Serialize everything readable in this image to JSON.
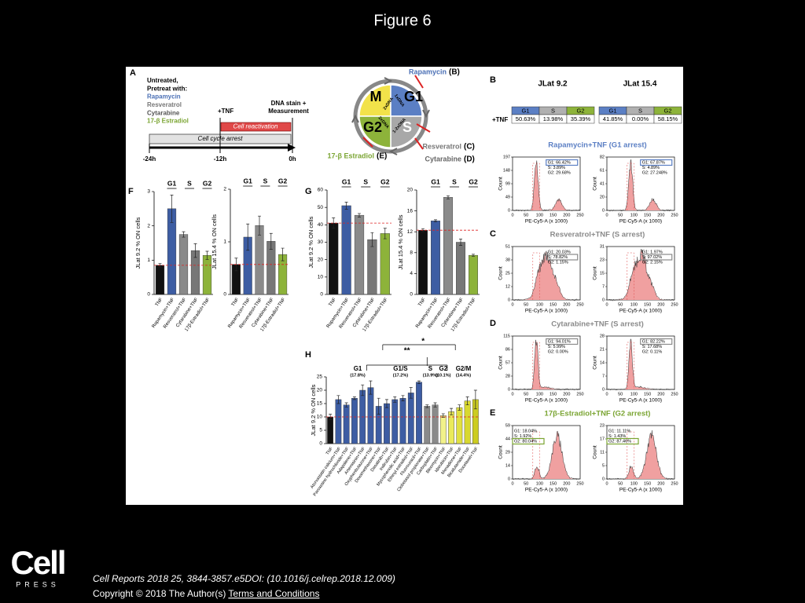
{
  "header": {
    "title": "Figure 6"
  },
  "panel_a": {
    "letter": "A",
    "pretreat": [
      "Untreated,",
      "Pretreat with:",
      "Rapamycin",
      "Resveratrol",
      "Cytarabine",
      "17-β Estradiol"
    ],
    "tnf": "+TNF",
    "measure": [
      "DNA stain +",
      "Measurement"
    ],
    "reactivation": "Cell reactivation",
    "arrest": "Cell cycle arrest",
    "times": [
      "-24h",
      "-12h",
      "0h"
    ],
    "cycle": {
      "phases": [
        "M",
        "G1",
        "S",
        "G2"
      ],
      "dna": [
        "2xDNA",
        "1xDNA",
        "1-2xDNA",
        "2xDNA"
      ],
      "drugs": [
        {
          "name": "Rapamycin",
          "ref": "(B)"
        },
        {
          "name": "Resveratrol",
          "ref": "(C)"
        },
        {
          "name": "Cytarabine",
          "ref": "(D)"
        },
        {
          "name": "17-β Estradiol",
          "ref": "(E)"
        }
      ]
    }
  },
  "panel_b": {
    "letter": "B",
    "lines": [
      "JLat 9.2",
      "JLat 15.4"
    ],
    "table": {
      "header": [
        "G1",
        "S",
        "G2"
      ],
      "row_label": "+TNF",
      "rows": [
        [
          "50.63%",
          "13.98%",
          "35.39%"
        ],
        [
          "41.85%",
          "0.00%",
          "58.15%"
        ]
      ]
    }
  },
  "flow": {
    "y_label": "Count",
    "x_label": "PE-Cy5-A (x 1000)",
    "xticks": [
      "0",
      "50",
      "100",
      "150",
      "200",
      "250"
    ],
    "sections": [
      {
        "title": "Rapamycin+TNF (G1 arrest)",
        "color": "#5b7fc4",
        "highlight": 0,
        "plots": [
          {
            "yticks": [
              "197",
              "148",
              "99",
              "49",
              "0"
            ],
            "gates": [
              "G1: 66.42%",
              "S: 3.89%",
              "G2: 29.68%"
            ]
          },
          {
            "yticks": [
              "82",
              "61",
              "41",
              "20",
              "0"
            ],
            "gates": [
              "G1: 67.87%",
              "S: 4.89%",
              "G2: 27.248%"
            ]
          }
        ]
      },
      {
        "letter": "C",
        "title": "Resveratrol+TNF (S arrest)",
        "color": "#8a8a8a",
        "highlight": 1,
        "plots": [
          {
            "yticks": [
              "51",
              "38",
              "25",
              "12",
              "0"
            ],
            "gates": [
              "G1: 20.03%",
              "S: 78.82%",
              "G2: 1.15%"
            ]
          },
          {
            "yticks": [
              "31",
              "23",
              "15",
              "7",
              "0"
            ],
            "gates": [
              "G1: 1.97%",
              "S: 97.02%",
              "G2: 2.15%"
            ]
          }
        ]
      },
      {
        "letter": "D",
        "title": "Cytarabine+TNF (S arrest)",
        "color": "#8a8a8a",
        "highlight": 0,
        "plots": [
          {
            "yticks": [
              "115",
              "86",
              "57",
              "28",
              "0"
            ],
            "gates": [
              "G1: 94.01%",
              "S: 5.99%",
              "G2: 0.00%"
            ]
          },
          {
            "yticks": [
              "28",
              "21",
              "14",
              "7",
              "0"
            ],
            "gates": [
              "G1: 82.22%",
              "S: 17.68%",
              "G2: 0.11%"
            ]
          }
        ]
      },
      {
        "letter": "E",
        "title": "17β-Estradiol+TNF (G2 arrest)",
        "color": "#7ba533",
        "highlight": 2,
        "plots": [
          {
            "yticks": [
              "59",
              "44",
              "29",
              "14",
              "0"
            ],
            "gates": [
              "G1: 18.04%",
              "S: 1.92%",
              "G2: 80.04%"
            ]
          },
          {
            "yticks": [
              "23",
              "17",
              "11",
              "5",
              "0"
            ],
            "gates": [
              "G1: 11.11%",
              "S: 1.43%",
              "G2: 87.46%"
            ]
          }
        ]
      }
    ]
  },
  "panel_letters": {
    "f": "F",
    "g": "G",
    "h": "H"
  },
  "chart_data": [
    {
      "type": "bar",
      "y_label": "JLat 9.2 % ON cells",
      "groups": [
        "G1",
        "S",
        "G2"
      ],
      "categories": [
        "TNF",
        "Rapamycin+TNF",
        "Resveratrol+TNF",
        "Cytarabine+TNF",
        "17β-Estradiol+TNF"
      ],
      "values": [
        0.85,
        2.5,
        1.75,
        1.28,
        1.14
      ],
      "errors": [
        0.05,
        0.4,
        0.08,
        0.2,
        0.12
      ],
      "colors": [
        "#111111",
        "#3d5da3",
        "#8a8a8a",
        "#777777",
        "#8db33a"
      ],
      "ylim": [
        0,
        3
      ],
      "yticks": [
        0,
        1,
        2,
        3
      ]
    },
    {
      "type": "bar",
      "y_label": "JLat 15.4 % ON cells",
      "groups": [
        "G1",
        "S",
        "G2"
      ],
      "categories": [
        "TNF",
        "Rapamycin+TNF",
        "Resveratrol+TNF",
        "Cytarabine+TNF",
        "17β-Estradiol+TNF"
      ],
      "values": [
        0.57,
        1.09,
        1.31,
        1.01,
        0.76
      ],
      "errors": [
        0.12,
        0.25,
        0.18,
        0.15,
        0.12
      ],
      "colors": [
        "#111111",
        "#3d5da3",
        "#8a8a8a",
        "#777777",
        "#8db33a"
      ],
      "ylim": [
        0,
        2
      ],
      "yticks": [
        0,
        1,
        2
      ]
    },
    {
      "type": "bar",
      "y_label": "JLat 9.2 % ON cells",
      "groups": [
        "G1",
        "S",
        "G2"
      ],
      "categories": [
        "TNF",
        "Rapamycin+TNF",
        "Resveratrol+TNF",
        "Cytarabine+TNF",
        "17β-Estradiol+TNF"
      ],
      "values": [
        41,
        51,
        45.5,
        31.5,
        35
      ],
      "errors": [
        3,
        2,
        1,
        4,
        3
      ],
      "colors": [
        "#111111",
        "#3d5da3",
        "#8a8a8a",
        "#777777",
        "#8db33a"
      ],
      "ylim": [
        0,
        60
      ],
      "yticks": [
        0,
        10,
        20,
        30,
        40,
        50,
        60
      ]
    },
    {
      "type": "bar",
      "y_label": "JLat 15.4 % ON cells",
      "groups": [
        "G1",
        "S",
        "G2"
      ],
      "categories": [
        "TNF",
        "Rapamycin+TNF",
        "Resveratrol+TNF",
        "Cytarabine+TNF",
        "17β-Estradiol+TNF"
      ],
      "values": [
        12.3,
        14.1,
        18.6,
        10,
        7.5
      ],
      "errors": [
        0.3,
        0.2,
        0.3,
        0.6,
        0.2
      ],
      "colors": [
        "#111111",
        "#3d5da3",
        "#8a8a8a",
        "#777777",
        "#8db33a"
      ],
      "ylim": [
        0,
        20
      ],
      "yticks": [
        0,
        4,
        8,
        12,
        16,
        20
      ]
    },
    {
      "type": "bar",
      "y_label": "JLat 9.2 % ON cells",
      "groups": [
        {
          "label": "G1",
          "pct": "(17.8%)"
        },
        {
          "label": "G1/S",
          "pct": "(17.2%)"
        },
        {
          "label": "S",
          "pct": "(13.9%)"
        },
        {
          "label": "G2",
          "pct": "(10.1%)"
        },
        {
          "label": "G2/M",
          "pct": "(14.4%)"
        }
      ],
      "significance": [
        "*",
        "**"
      ],
      "categories": [
        "TNF",
        "Atorvastatin calcium+TNF",
        "Paroxetine hydrochloride+TNF",
        "Adapalene+TNF",
        "Artemisinin+TNF",
        "Oxyphenbutazone+TNF",
        "Dexamethasone+TNF",
        "Dasatinib+TNF",
        "Indirubin+TNF",
        "Mycophenolic acid+TNF",
        "Ethinyl estradiol+TNF",
        "Fluorouracil+TNF",
        "Clobetasol propionate+TNF",
        "Carboplatin+TNF",
        "Bleomycin+TNF",
        "Idarubicin+TNF",
        "Menadione+TNF",
        "Bicalutamide+TNF",
        "Docetaxel+TNF"
      ],
      "values": [
        10,
        16.5,
        14.5,
        17,
        20,
        21,
        14,
        15,
        16.5,
        17,
        19,
        23,
        14,
        14.5,
        10.5,
        12,
        13.5,
        16,
        16.5
      ],
      "errors": [
        1,
        1.5,
        0.8,
        0.5,
        2,
        2.5,
        3,
        1.5,
        1,
        1,
        2,
        0.5,
        0.5,
        0.8,
        0.7,
        1.2,
        1,
        1.5,
        3.5
      ],
      "colors": [
        "#111111",
        "#3d5da3",
        "#3d5da3",
        "#3d5da3",
        "#3d5da3",
        "#3d5da3",
        "#3d5da3",
        "#3d5da3",
        "#3d5da3",
        "#3d5da3",
        "#3d5da3",
        "#3d5da3",
        "#8a8a8a",
        "#8a8a8a",
        "#f2f28a",
        "#eaea5a",
        "#e0e040",
        "#d8d830",
        "#cccc20"
      ],
      "ylim": [
        0,
        25
      ],
      "yticks": [
        0,
        5,
        10,
        15,
        20,
        25
      ]
    }
  ],
  "footer": {
    "logo": "Cell",
    "logo_sub": "PRESS",
    "citation": "Cell Reports 2018 25, 3844-3857.e5DOI: (10.1016/j.celrep.2018.12.009)",
    "copyright": "Copyright © 2018 The Author(s)",
    "link": "Terms and Conditions"
  }
}
